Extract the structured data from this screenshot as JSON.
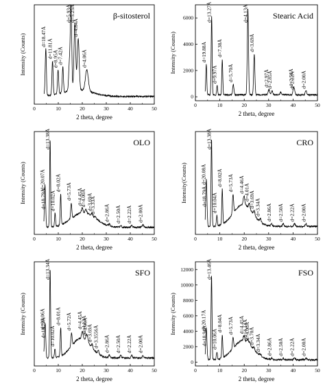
{
  "chart_data": [
    {
      "type": "line",
      "title": "β-sitosterol",
      "xlabel": "2 theta, degree",
      "ylabel": "Intensity (Counts)",
      "xlim": [
        0,
        50
      ],
      "xticks": [
        "0",
        "10",
        "20",
        "30",
        "40",
        "50"
      ],
      "yticks": [],
      "grid": false,
      "peaks": [
        {
          "x": 4.8,
          "y": 0.55,
          "w": 0.25,
          "label": "d=18.47Å"
        },
        {
          "x": 7.6,
          "y": 0.4,
          "w": 0.25,
          "label": "d=11.81Å"
        },
        {
          "x": 9.9,
          "y": 0.28,
          "w": 0.25,
          "label": "d=8.95Å"
        },
        {
          "x": 11.9,
          "y": 0.3,
          "w": 0.25,
          "label": "d=7.42Å"
        },
        {
          "x": 14.6,
          "y": 0.3,
          "w": 0.3,
          "label": ""
        },
        {
          "x": 15.3,
          "y": 1.0,
          "w": 0.3,
          "label": "d=5.93Å"
        },
        {
          "x": 16.9,
          "y": 0.78,
          "w": 0.35,
          "label": "d=5.25Å"
        },
        {
          "x": 18.3,
          "y": 0.6,
          "w": 0.4,
          "label": "d=4.84Å"
        },
        {
          "x": 21.9,
          "y": 0.25,
          "w": 0.6,
          "label": "d=4.06Å"
        }
      ],
      "halo": {
        "center": 18,
        "height": 0.08,
        "width": 6
      },
      "baseline": 0.04
    },
    {
      "type": "line",
      "title": "Stearic Acid",
      "xlabel": "2 theta, degree",
      "ylabel": "Intensity (Counts)",
      "xlim": [
        0,
        50
      ],
      "ylim": [
        -300,
        7000
      ],
      "xticks": [
        "0",
        "10",
        "20",
        "30",
        "40",
        "50"
      ],
      "yticks": [
        "0",
        "2000",
        "4000",
        "6000"
      ],
      "grid": false,
      "peaks": [
        {
          "x": 4.45,
          "y": 2300,
          "w": 0.2,
          "label": "d=19.88Å"
        },
        {
          "x": 6.65,
          "y": 6000,
          "w": 0.2,
          "label": "d=13.27Å"
        },
        {
          "x": 8.9,
          "y": 700,
          "w": 0.2,
          "label": "d=9.97Å"
        },
        {
          "x": 11.0,
          "y": 2700,
          "w": 0.2,
          "label": "d=7.38Å"
        },
        {
          "x": 15.5,
          "y": 800,
          "w": 0.25,
          "label": "d=5.70Å"
        },
        {
          "x": 21.5,
          "y": 6500,
          "w": 0.25,
          "label": "d=4.13Å"
        },
        {
          "x": 24.1,
          "y": 3100,
          "w": 0.25,
          "label": "d=3.69Å"
        },
        {
          "x": 30.1,
          "y": 400,
          "w": 0.3,
          "label": "d=2.97Å"
        },
        {
          "x": 31.4,
          "y": 300,
          "w": 0.3,
          "label": "d=2.85Å"
        },
        {
          "x": 35.0,
          "y": 200,
          "w": 0.3,
          "label": ""
        },
        {
          "x": 40.2,
          "y": 450,
          "w": 0.3,
          "label": "d=2.56Å"
        },
        {
          "x": 40.6,
          "y": 250,
          "w": 0.3,
          "label": "d=2.22Å"
        },
        {
          "x": 45.3,
          "y": 300,
          "w": 0.3,
          "label": "d=2.00Å"
        }
      ],
      "baseline": 150
    },
    {
      "type": "line",
      "title": "OLO",
      "xlabel": "2 theta, degree",
      "ylabel": "Intensity (Counts)",
      "xlim": [
        0,
        50
      ],
      "xticks": [
        "0",
        "10",
        "20",
        "30",
        "40",
        "50"
      ],
      "yticks": [],
      "grid": false,
      "peaks": [
        {
          "x": 4.4,
          "y": 0.4,
          "w": 0.2,
          "label": "d=20.07Å"
        },
        {
          "x": 4.7,
          "y": 0.18,
          "w": 0.2,
          "label": "d=18.79Å"
        },
        {
          "x": 6.6,
          "y": 1.0,
          "w": 0.2,
          "label": "d=13.38Å"
        },
        {
          "x": 8.65,
          "y": 0.15,
          "w": 0.2,
          "label": "d=10.02Å"
        },
        {
          "x": 11.0,
          "y": 0.35,
          "w": 0.2,
          "label": "d=8.02Å"
        },
        {
          "x": 15.4,
          "y": 0.18,
          "w": 0.25,
          "label": "d=5.73Å"
        },
        {
          "x": 20.0,
          "y": 0.05,
          "w": 0.3,
          "label": "d=4.45Å"
        },
        {
          "x": 21.5,
          "y": 0.04,
          "w": 0.3,
          "label": "d=4.00Å"
        },
        {
          "x": 24.1,
          "y": 0.03,
          "w": 0.3,
          "label": "d=3.69Å"
        },
        {
          "x": 25.4,
          "y": 0.02,
          "w": 0.3,
          "label": "d=3.33Å"
        },
        {
          "x": 31.3,
          "y": 0.02,
          "w": 0.3,
          "label": "d=2.86Å"
        },
        {
          "x": 36.0,
          "y": 0.02,
          "w": 0.3,
          "label": "d=2.50Å"
        },
        {
          "x": 40.6,
          "y": 0.02,
          "w": 0.3,
          "label": "d=2.22Å"
        },
        {
          "x": 45.3,
          "y": 0.03,
          "w": 0.3,
          "label": "d=2.00Å"
        }
      ],
      "halo": {
        "center": 20.5,
        "height": 0.17,
        "width": 5
      },
      "baseline": 0.03
    },
    {
      "type": "line",
      "title": "CRO",
      "xlabel": "2 theta, degree",
      "ylabel": "Intensity(Counts)",
      "xlim": [
        0,
        50
      ],
      "xticks": [
        "0",
        "10",
        "20",
        "30",
        "40",
        "50"
      ],
      "yticks": [],
      "grid": false,
      "peaks": [
        {
          "x": 4.4,
          "y": 0.45,
          "w": 0.2,
          "label": "d=20.08Å"
        },
        {
          "x": 4.7,
          "y": 0.2,
          "w": 0.2,
          "label": "d=18.79Å"
        },
        {
          "x": 6.6,
          "y": 1.0,
          "w": 0.2,
          "label": "d=13.38Å"
        },
        {
          "x": 8.8,
          "y": 0.12,
          "w": 0.2,
          "label": "d=10.04Å"
        },
        {
          "x": 11.0,
          "y": 0.4,
          "w": 0.2,
          "label": "d=8.02Å"
        },
        {
          "x": 15.4,
          "y": 0.22,
          "w": 0.25,
          "label": "d=5.73Å"
        },
        {
          "x": 19.9,
          "y": 0.1,
          "w": 0.3,
          "label": "d=4.46Å"
        },
        {
          "x": 22.1,
          "y": 0.06,
          "w": 0.3,
          "label": "d=4.01Å"
        },
        {
          "x": 24.1,
          "y": 0.05,
          "w": 0.3,
          "label": "d=3.69Å"
        },
        {
          "x": 26.6,
          "y": 0.04,
          "w": 0.3,
          "label": "d=3.34Å"
        },
        {
          "x": 31.2,
          "y": 0.03,
          "w": 0.3,
          "label": "d=2.86Å"
        },
        {
          "x": 36.0,
          "y": 0.03,
          "w": 0.3,
          "label": "d=2.50Å"
        },
        {
          "x": 40.6,
          "y": 0.03,
          "w": 0.3,
          "label": "d=2.22Å"
        },
        {
          "x": 45.3,
          "y": 0.03,
          "w": 0.3,
          "label": "d=2.00Å"
        }
      ],
      "halo": {
        "center": 19.5,
        "height": 0.25,
        "width": 4
      },
      "baseline": 0.04
    },
    {
      "type": "line",
      "title": "SFO",
      "xlabel": "2 theta, degree",
      "ylabel": "Intensity (Counts)",
      "xlim": [
        0,
        50
      ],
      "xticks": [
        "0",
        "10",
        "20",
        "30",
        "40",
        "50"
      ],
      "yticks": [],
      "grid": false,
      "peaks": [
        {
          "x": 4.4,
          "y": 0.3,
          "w": 0.2,
          "label": "d=20.06Å"
        },
        {
          "x": 4.7,
          "y": 0.2,
          "w": 0.2,
          "label": "d=18.79Å"
        },
        {
          "x": 6.6,
          "y": 1.0,
          "w": 0.2,
          "label": "d=13.34Å"
        },
        {
          "x": 8.6,
          "y": 0.1,
          "w": 0.2,
          "label": "d=10.02Å"
        },
        {
          "x": 11.0,
          "y": 0.32,
          "w": 0.2,
          "label": "d=8.01Å"
        },
        {
          "x": 15.5,
          "y": 0.15,
          "w": 0.25,
          "label": "d=5.72Å"
        },
        {
          "x": 20.0,
          "y": 0.08,
          "w": 0.3,
          "label": "d=4.45Å"
        },
        {
          "x": 21.7,
          "y": 0.06,
          "w": 0.3,
          "label": "d=4.13Å"
        },
        {
          "x": 22.2,
          "y": 0.05,
          "w": 0.3,
          "label": "d=4.00Å"
        },
        {
          "x": 24.1,
          "y": 0.04,
          "w": 0.3,
          "label": "d=3.69Å"
        },
        {
          "x": 26.7,
          "y": 0.04,
          "w": 0.3,
          "label": "d=3.3556Å"
        },
        {
          "x": 31.3,
          "y": 0.03,
          "w": 0.3,
          "label": "d=2.86Å"
        },
        {
          "x": 36.0,
          "y": 0.03,
          "w": 0.3,
          "label": "d=2.50Å"
        },
        {
          "x": 40.6,
          "y": 0.03,
          "w": 0.3,
          "label": "d=2.22Å"
        },
        {
          "x": 45.3,
          "y": 0.03,
          "w": 0.3,
          "label": "d=2.00Å"
        }
      ],
      "halo": {
        "center": 19.5,
        "height": 0.22,
        "width": 4
      },
      "baseline": 0.04
    },
    {
      "type": "line",
      "title": "FSO",
      "xlabel": "2 theta, degree",
      "ylabel": "Intensity (Counts)",
      "xlim": [
        0,
        50
      ],
      "ylim": [
        -500,
        13000
      ],
      "xticks": [
        "0",
        "10",
        "20",
        "30",
        "40",
        "50"
      ],
      "yticks": [
        "0",
        "2000",
        "4000",
        "6000",
        "8000",
        "10000",
        "12000"
      ],
      "grid": false,
      "peaks": [
        {
          "x": 4.4,
          "y": 3500,
          "w": 0.2,
          "label": "d=20.17Å"
        },
        {
          "x": 4.7,
          "y": 1500,
          "w": 0.2,
          "label": "d=18.94Å"
        },
        {
          "x": 6.6,
          "y": 11000,
          "w": 0.2,
          "label": "d=13.46Å"
        },
        {
          "x": 8.8,
          "y": 1000,
          "w": 0.2,
          "label": "d=10.06Å"
        },
        {
          "x": 11.0,
          "y": 3000,
          "w": 0.2,
          "label": "d=8.04Å"
        },
        {
          "x": 15.4,
          "y": 1500,
          "w": 0.25,
          "label": "d=5.73Å"
        },
        {
          "x": 19.9,
          "y": 600,
          "w": 0.3,
          "label": "d=4.45Å"
        },
        {
          "x": 21.4,
          "y": 400,
          "w": 0.3,
          "label": "d=4.14Å"
        },
        {
          "x": 22.2,
          "y": 300,
          "w": 0.3,
          "label": "d=4.00Å"
        },
        {
          "x": 24.0,
          "y": 300,
          "w": 0.3,
          "label": "d=3.70Å"
        },
        {
          "x": 26.7,
          "y": 250,
          "w": 0.3,
          "label": "d=3.34Å"
        },
        {
          "x": 31.3,
          "y": 200,
          "w": 0.3,
          "label": "d=2.86Å"
        },
        {
          "x": 36.0,
          "y": 200,
          "w": 0.3,
          "label": "d=2.50Å"
        },
        {
          "x": 40.6,
          "y": 200,
          "w": 0.3,
          "label": "d=2.22Å"
        },
        {
          "x": 45.3,
          "y": 200,
          "w": 0.3,
          "label": "d=2.00Å"
        }
      ],
      "halo": {
        "center": 19.5,
        "height": 2500,
        "width": 4
      },
      "baseline": 300
    }
  ]
}
